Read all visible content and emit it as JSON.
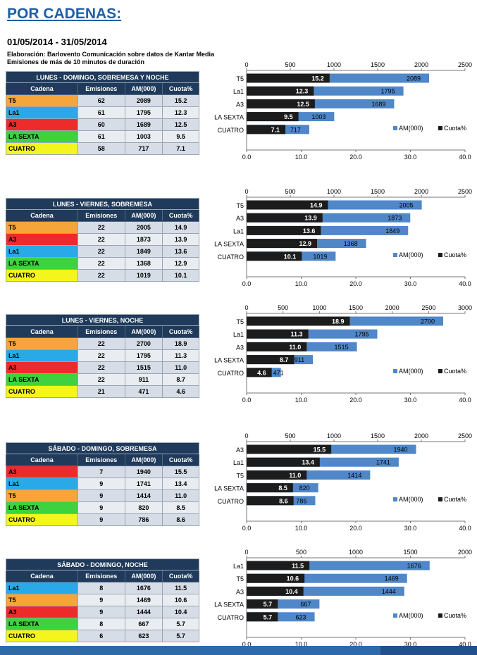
{
  "page": {
    "title": "POR CADENAS:",
    "period": "01/05/2014 - 31/05/2014",
    "note1": "Elaboración:  Barlovento Comunicación  sobre datos de Kantar Media",
    "note2": "Emisiones de más de 10 minutos de duración"
  },
  "colors": {
    "T5": "#f6a53a",
    "La1": "#2aa9e8",
    "A3": "#ee2b2b",
    "LA SEXTA": "#3fd23f",
    "CUATRO": "#f5f51e",
    "am_bar": "#4f87c9",
    "cuota_bar": "#1c1c1c",
    "header": "#1f3a5a"
  },
  "table_headers": [
    "Cadena",
    "Emisiones",
    "AM(000)",
    "Cuota%"
  ],
  "legend": {
    "am": "AM(000)",
    "cuota": "Cuota%"
  },
  "chart_data": [
    {
      "type": "bar",
      "orientation": "horizontal",
      "title": "LUNES - DOMINGO, SOBREMESA Y NOCHE",
      "categories": [
        "T5",
        "La1",
        "A3",
        "LA SEXTA",
        "CUATRO"
      ],
      "emisiones": [
        62,
        61,
        60,
        61,
        58
      ],
      "series": [
        {
          "name": "AM(000)",
          "values": [
            2089,
            1795,
            1689,
            1003,
            717
          ],
          "axis": "top",
          "range": [
            0,
            2500
          ]
        },
        {
          "name": "Cuota%",
          "values": [
            15.2,
            12.3,
            12.5,
            9.5,
            7.1
          ],
          "axis": "bottom",
          "range": [
            0,
            40
          ]
        }
      ],
      "top_ticks": [
        "0",
        "500",
        "1000",
        "1500",
        "2000",
        "2500"
      ],
      "bottom_ticks": [
        "0.0",
        "10.0",
        "20.0",
        "30.0",
        "40.0"
      ],
      "legend_placement": "right"
    },
    {
      "type": "bar",
      "orientation": "horizontal",
      "title": "LUNES - VIERNES, SOBREMESA",
      "categories": [
        "T5",
        "A3",
        "La1",
        "LA SEXTA",
        "CUATRO"
      ],
      "emisiones": [
        22,
        22,
        22,
        22,
        22
      ],
      "series": [
        {
          "name": "AM(000)",
          "values": [
            2005,
            1873,
            1849,
            1368,
            1019
          ],
          "axis": "top",
          "range": [
            0,
            2500
          ]
        },
        {
          "name": "Cuota%",
          "values": [
            14.9,
            13.9,
            13.6,
            12.9,
            10.1
          ],
          "axis": "bottom",
          "range": [
            0,
            40
          ]
        }
      ],
      "top_ticks": [
        "0",
        "500",
        "1000",
        "1500",
        "2000",
        "2500"
      ],
      "bottom_ticks": [
        "0.0",
        "10.0",
        "20.0",
        "30.0",
        "40.0"
      ],
      "legend_placement": "right"
    },
    {
      "type": "bar",
      "orientation": "horizontal",
      "title": "LUNES - VIERNES, NOCHE",
      "categories": [
        "T5",
        "La1",
        "A3",
        "LA SEXTA",
        "CUATRO"
      ],
      "emisiones": [
        22,
        22,
        22,
        22,
        21
      ],
      "series": [
        {
          "name": "AM(000)",
          "values": [
            2700,
            1795,
            1515,
            911,
            471
          ],
          "axis": "top",
          "range": [
            0,
            3000
          ]
        },
        {
          "name": "Cuota%",
          "values": [
            18.9,
            11.3,
            11.0,
            8.7,
            4.6
          ],
          "axis": "bottom",
          "range": [
            0,
            40
          ]
        }
      ],
      "top_ticks": [
        "0",
        "500",
        "1000",
        "1500",
        "2000",
        "2500",
        "3000"
      ],
      "bottom_ticks": [
        "0.0",
        "10.0",
        "20.0",
        "30.0",
        "40.0"
      ],
      "legend_placement": "right"
    },
    {
      "type": "bar",
      "orientation": "horizontal",
      "title": "SÁBADO - DOMINGO, SOBREMESA",
      "categories": [
        "A3",
        "La1",
        "T5",
        "LA SEXTA",
        "CUATRO"
      ],
      "emisiones": [
        7,
        9,
        9,
        9,
        9
      ],
      "series": [
        {
          "name": "AM(000)",
          "values": [
            1940,
            1741,
            1414,
            820,
            786
          ],
          "axis": "top",
          "range": [
            0,
            2500
          ]
        },
        {
          "name": "Cuota%",
          "values": [
            15.5,
            13.4,
            11.0,
            8.5,
            8.6
          ],
          "axis": "bottom",
          "range": [
            0,
            40
          ]
        }
      ],
      "top_ticks": [
        "0",
        "500",
        "1000",
        "1500",
        "2000",
        "2500"
      ],
      "bottom_ticks": [
        "0.0",
        "10.0",
        "20.0",
        "30.0",
        "40.0"
      ],
      "legend_placement": "right"
    },
    {
      "type": "bar",
      "orientation": "horizontal",
      "title": "SÁBADO - DOMINGO, NOCHE",
      "categories": [
        "La1",
        "T5",
        "A3",
        "LA SEXTA",
        "CUATRO"
      ],
      "emisiones": [
        8,
        9,
        9,
        8,
        6
      ],
      "series": [
        {
          "name": "AM(000)",
          "values": [
            1676,
            1469,
            1444,
            667,
            623
          ],
          "axis": "top",
          "range": [
            0,
            2000
          ]
        },
        {
          "name": "Cuota%",
          "values": [
            11.5,
            10.6,
            10.4,
            5.7,
            5.7
          ],
          "axis": "bottom",
          "range": [
            0,
            40
          ]
        }
      ],
      "top_ticks": [
        "0",
        "500",
        "1000",
        "1500",
        "2000"
      ],
      "bottom_ticks": [
        "0.0",
        "10.0",
        "20.0",
        "30.0",
        "40.0"
      ],
      "legend_placement": "right"
    }
  ]
}
